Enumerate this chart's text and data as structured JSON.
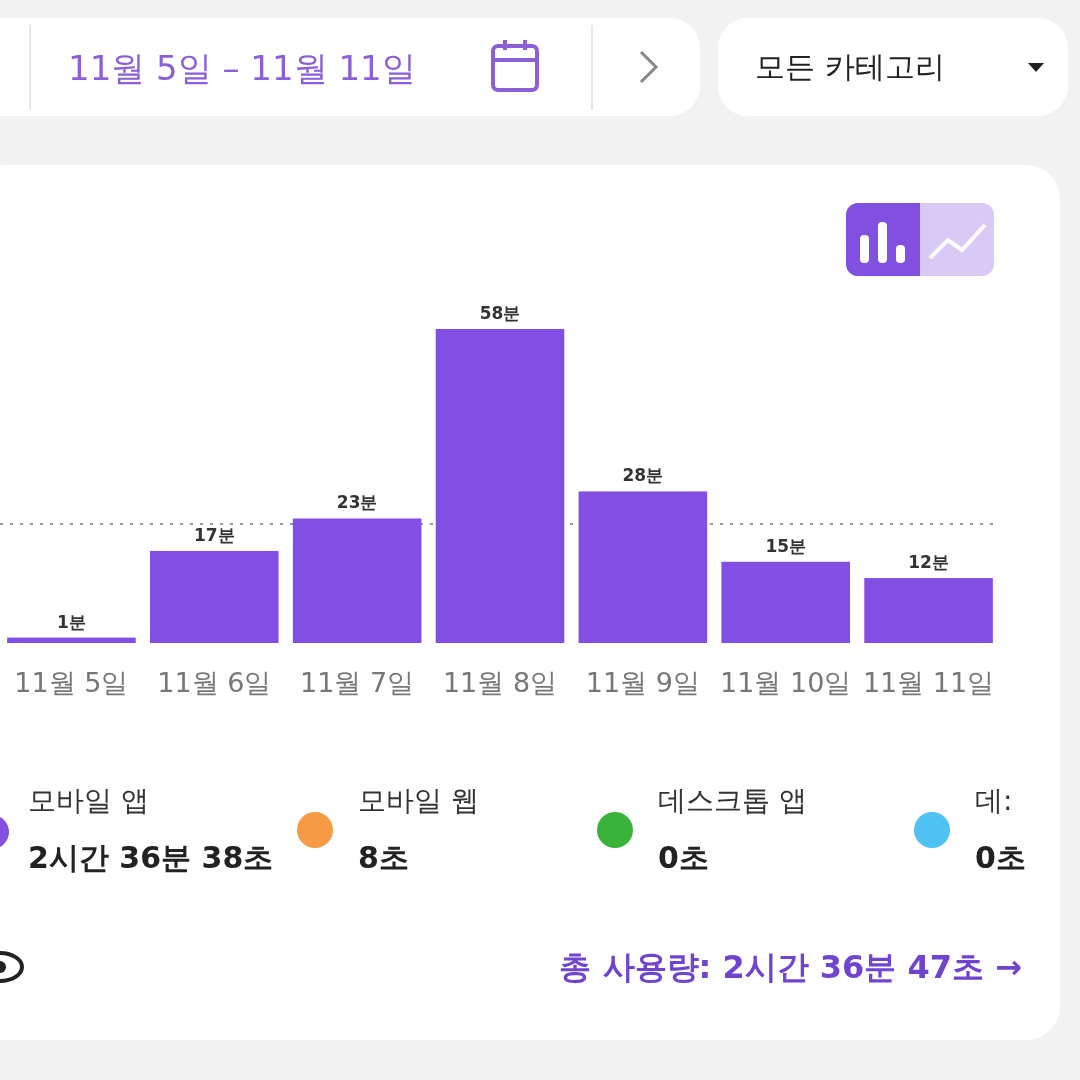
{
  "chart_data": {
    "type": "bar",
    "title": "11월 5일 – 11월 11일",
    "categories": [
      "11월 5일",
      "11월 6일",
      "11월 7일",
      "11월 8일",
      "11월 9일",
      "11월 10일",
      "11월 11일"
    ],
    "values": [
      1,
      17,
      23,
      58,
      28,
      15,
      12
    ],
    "value_labels": [
      "1분",
      "17분",
      "23분",
      "58분",
      "28분",
      "15분",
      "12분"
    ],
    "color": "#824fe4",
    "ref_lines": [
      {
        "axis": "y",
        "value": 22,
        "color": "#999999",
        "line_style": "dotted"
      }
    ],
    "annotations": [
      "모든 카테고리",
      "모바일 앱",
      "2시간 36분 38초",
      "모바일 웹",
      "8초",
      "데스크톱 앱",
      "0초",
      "데:",
      "0초",
      "총 사용량: 2시간 36분 47초 →"
    ]
  }
}
